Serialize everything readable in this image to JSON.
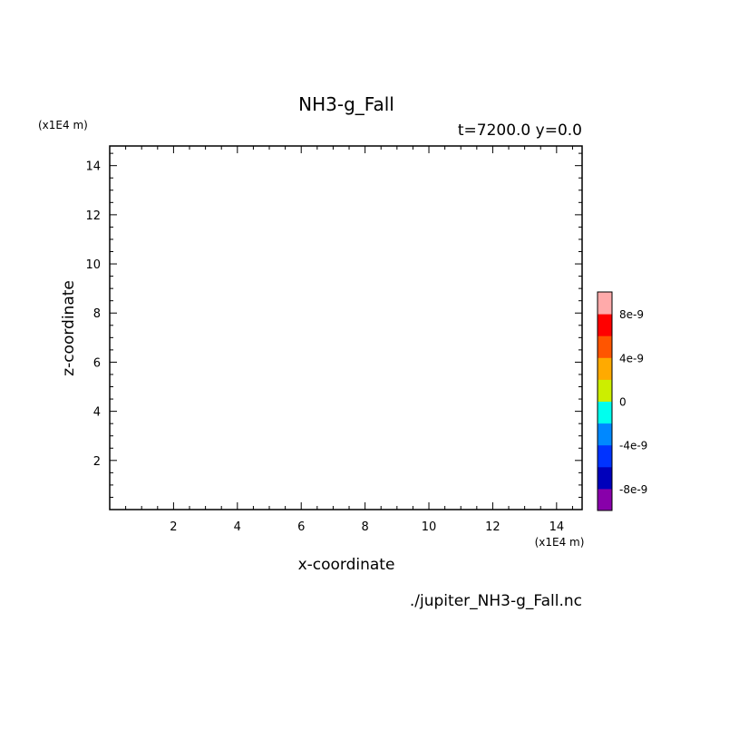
{
  "chart_data": {
    "type": "heatmap",
    "title": "NH3-g_Fall",
    "subtitle": "t=7200.0 y=0.0",
    "xlabel": "x-coordinate",
    "ylabel": "z-coordinate",
    "x_unit": "(x1E4 m)",
    "y_unit": "(x1E4 m)",
    "source_file": "./jupiter_NH3-g_Fall.nc",
    "xlim": [
      0,
      14.8
    ],
    "ylim": [
      0,
      14.8
    ],
    "x_ticks": [
      2,
      4,
      6,
      8,
      10,
      12,
      14
    ],
    "y_ticks": [
      2,
      4,
      6,
      8,
      10,
      12,
      14
    ],
    "grid": false,
    "legend_placement": "right",
    "colorbar": {
      "min": -1e-08,
      "max": 1e-08,
      "labels": [
        {
          "value": 8e-09,
          "text": "8e-9"
        },
        {
          "value": 4e-09,
          "text": "4e-9"
        },
        {
          "value": 0,
          "text": "0"
        },
        {
          "value": -4e-09,
          "text": "-4e-9"
        },
        {
          "value": -8e-09,
          "text": "-8e-9"
        }
      ],
      "colors": [
        "#8800aa",
        "#0000bb",
        "#0033ff",
        "#0088ff",
        "#00ffee",
        "#ccee00",
        "#ffaa00",
        "#ff5500",
        "#ff0000",
        "#ffaaaa"
      ]
    }
  }
}
